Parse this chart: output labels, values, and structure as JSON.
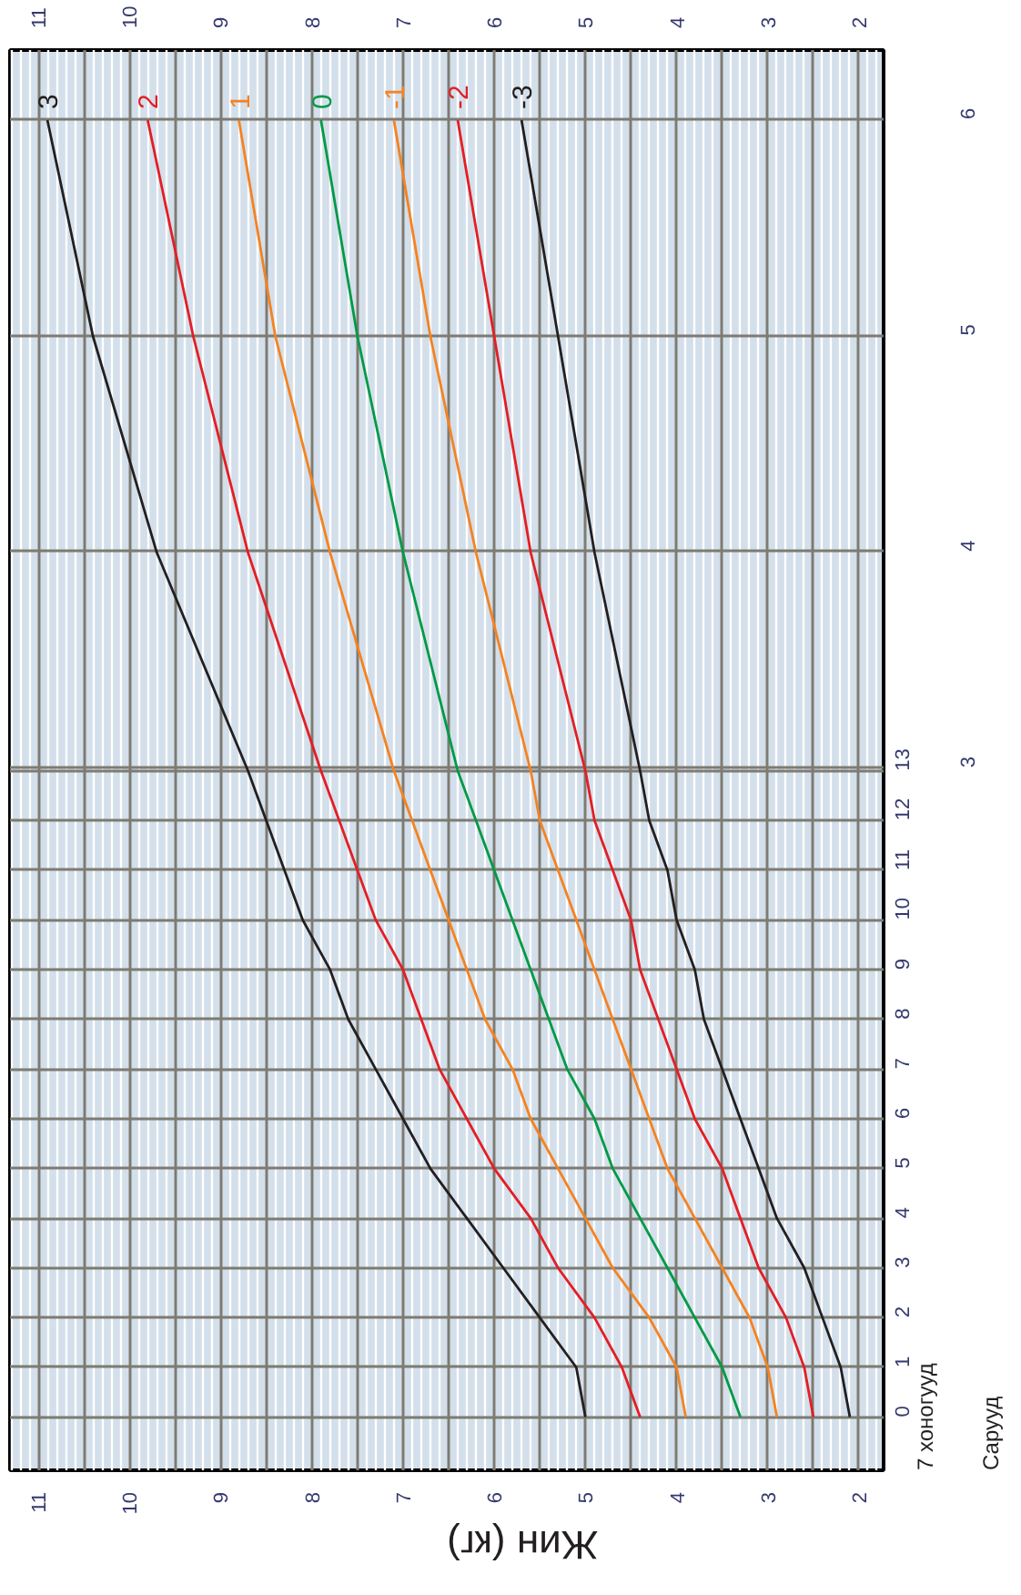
{
  "chart_data": {
    "type": "line",
    "xlabel": "Жин (кг)",
    "ylabel": "7 хоногууд",
    "y2label": "Сарууд",
    "xlim": [
      11.31,
      1.73
    ],
    "xticks": [
      11,
      {
        "value": 10.5,
        "label": null
      },
      10,
      {
        "value": 9.5,
        "label": null
      },
      9,
      {
        "value": 8.5,
        "label": null
      },
      8,
      {
        "value": 7.5,
        "label": null
      },
      7,
      {
        "value": 6.5,
        "label": null
      },
      6,
      {
        "value": 5.5,
        "label": null
      },
      5,
      {
        "value": 4.5,
        "label": null
      },
      4,
      {
        "value": 3.5,
        "label": null
      },
      3,
      {
        "value": 2.5,
        "label": null
      },
      2
    ],
    "x2lim": [
      11.31,
      1.73
    ],
    "x2ticks": [
      11,
      10,
      9,
      8,
      7,
      6,
      5,
      4,
      3,
      2
    ],
    "ylim": [
      -1.07,
      27.5
    ],
    "yticks": [
      0,
      1,
      2,
      3,
      4,
      5,
      6,
      7,
      8,
      9,
      10,
      11,
      12,
      13
    ],
    "y2lim": [
      -0.25,
      6.32
    ],
    "y2ticks": [
      3,
      4,
      5,
      6
    ],
    "grid": true,
    "line_style": "solid",
    "marker": "none",
    "series": [
      {
        "name": "3",
        "color": "#231f20",
        "x": [
          5.0,
          5.1,
          5.5,
          5.9,
          6.3,
          6.7,
          7.0,
          7.3,
          7.6,
          7.8,
          8.1,
          8.3,
          8.5,
          8.7,
          9.7,
          10.4,
          10.9
        ],
        "values": [
          0,
          1,
          2,
          3,
          4,
          5,
          6,
          7,
          8,
          9,
          10,
          11,
          12,
          13,
          17.39,
          21.74,
          26.09
        ]
      },
      {
        "name": "2",
        "color": "#e31e24",
        "x": [
          4.4,
          4.6,
          4.9,
          5.3,
          5.6,
          6.0,
          6.3,
          6.6,
          6.8,
          7.0,
          7.3,
          7.5,
          7.7,
          7.9,
          8.7,
          9.3,
          9.8
        ],
        "values": [
          0,
          1,
          2,
          3,
          4,
          5,
          6,
          7,
          8,
          9,
          10,
          11,
          12,
          13,
          17.39,
          21.74,
          26.09
        ]
      },
      {
        "name": "1",
        "color": "#f58220",
        "x": [
          3.9,
          4.0,
          4.3,
          4.7,
          5.0,
          5.3,
          5.6,
          5.8,
          6.1,
          6.3,
          6.5,
          6.7,
          6.9,
          7.1,
          7.8,
          8.4,
          8.8
        ],
        "values": [
          0,
          1,
          2,
          3,
          4,
          5,
          6,
          7,
          8,
          9,
          10,
          11,
          12,
          13,
          17.39,
          21.74,
          26.09
        ]
      },
      {
        "name": "0",
        "color": "#009a44",
        "x": [
          3.3,
          3.5,
          3.8,
          4.1,
          4.4,
          4.7,
          4.9,
          5.2,
          5.4,
          5.6,
          5.8,
          6.0,
          6.2,
          6.4,
          7.0,
          7.5,
          7.9
        ],
        "values": [
          0,
          1,
          2,
          3,
          4,
          5,
          6,
          7,
          8,
          9,
          10,
          11,
          12,
          13,
          17.39,
          21.74,
          26.09
        ]
      },
      {
        "name": "-1",
        "color": "#f58220",
        "x": [
          2.9,
          3.0,
          3.2,
          3.5,
          3.8,
          4.1,
          4.3,
          4.5,
          4.7,
          4.9,
          5.1,
          5.3,
          5.5,
          5.6,
          6.2,
          6.7,
          7.1
        ],
        "values": [
          0,
          1,
          2,
          3,
          4,
          5,
          6,
          7,
          8,
          9,
          10,
          11,
          12,
          13,
          17.39,
          21.74,
          26.09
        ]
      },
      {
        "name": "-2",
        "color": "#e31e24",
        "x": [
          2.5,
          2.6,
          2.8,
          3.1,
          3.3,
          3.5,
          3.8,
          4.0,
          4.2,
          4.4,
          4.5,
          4.7,
          4.9,
          5.0,
          5.6,
          6.0,
          6.4
        ],
        "values": [
          0,
          1,
          2,
          3,
          4,
          5,
          6,
          7,
          8,
          9,
          10,
          11,
          12,
          13,
          17.39,
          21.74,
          26.09
        ]
      },
      {
        "name": "-3",
        "color": "#231f20",
        "x": [
          2.1,
          2.2,
          2.4,
          2.6,
          2.9,
          3.1,
          3.3,
          3.5,
          3.7,
          3.8,
          4.0,
          4.1,
          4.3,
          4.4,
          4.9,
          5.3,
          5.7
        ],
        "values": [
          0,
          1,
          2,
          3,
          4,
          5,
          6,
          7,
          8,
          9,
          10,
          11,
          12,
          13,
          17.39,
          21.74,
          26.09
        ]
      }
    ]
  }
}
